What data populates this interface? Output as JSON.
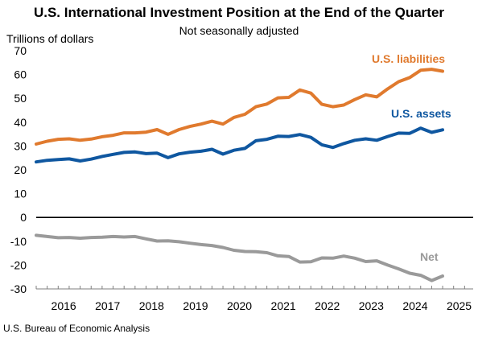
{
  "header": {
    "title": "U.S. International Investment Position at the End of the Quarter",
    "subtitle": "Not seasonally adjusted"
  },
  "footer": {
    "source": "U.S. Bureau of Economic Analysis"
  },
  "colors": {
    "liabilities": "#E07A2E",
    "assets": "#0F57A0",
    "net": "#9A9A9A",
    "zero_line": "#000000",
    "grid": "#D9D9D9"
  },
  "chart_data": {
    "type": "line",
    "title": "U.S. International Investment Position at the End of the Quarter",
    "subtitle": "Not seasonally adjusted",
    "ylabel": "Trillions of dollars",
    "xlabel": "",
    "ylim": [
      -30,
      70
    ],
    "yticks": [
      70,
      60,
      50,
      40,
      30,
      20,
      10,
      0,
      -10,
      -20,
      -30
    ],
    "year_labels": [
      "2016",
      "2017",
      "2018",
      "2019",
      "2020",
      "2021",
      "2022",
      "2023",
      "2024",
      "2025"
    ],
    "x": [
      "2015Q4",
      "2016Q1",
      "2016Q2",
      "2016Q3",
      "2016Q4",
      "2017Q1",
      "2017Q2",
      "2017Q3",
      "2017Q4",
      "2018Q1",
      "2018Q2",
      "2018Q3",
      "2018Q4",
      "2019Q1",
      "2019Q2",
      "2019Q3",
      "2019Q4",
      "2020Q1",
      "2020Q2",
      "2020Q3",
      "2020Q4",
      "2021Q1",
      "2021Q2",
      "2021Q3",
      "2021Q4",
      "2022Q1",
      "2022Q2",
      "2022Q3",
      "2022Q4",
      "2023Q1",
      "2023Q2",
      "2023Q3",
      "2023Q4",
      "2024Q1",
      "2024Q2",
      "2024Q3",
      "2024Q4",
      "2025Q1"
    ],
    "grid": false,
    "series": [
      {
        "name": "U.S. liabilities",
        "key": "liabilities",
        "values": [
          30.8,
          32.0,
          32.8,
          33.0,
          32.4,
          32.9,
          33.9,
          34.5,
          35.5,
          35.5,
          35.8,
          36.9,
          34.9,
          36.9,
          38.2,
          39.2,
          40.4,
          39.2,
          42.0,
          43.3,
          46.5,
          47.6,
          50.2,
          50.4,
          53.5,
          52.2,
          47.5,
          46.5,
          47.2,
          49.5,
          51.5,
          50.6,
          54.0,
          57.0,
          58.7,
          61.8,
          62.2,
          61.4
        ]
      },
      {
        "name": "U.S. assets",
        "key": "assets",
        "values": [
          23.3,
          24.0,
          24.3,
          24.6,
          23.7,
          24.5,
          25.6,
          26.5,
          27.3,
          27.5,
          26.8,
          27.0,
          25.1,
          26.7,
          27.4,
          27.8,
          28.6,
          26.6,
          28.2,
          29.0,
          32.2,
          32.8,
          34.1,
          34.0,
          34.8,
          33.6,
          30.5,
          29.4,
          31.0,
          32.4,
          33.0,
          32.4,
          34.0,
          35.4,
          35.3,
          37.5,
          35.7,
          36.8
        ]
      },
      {
        "name": "Net",
        "key": "net",
        "values": [
          -7.5,
          -8.0,
          -8.5,
          -8.4,
          -8.7,
          -8.4,
          -8.3,
          -8.0,
          -8.2,
          -8.0,
          -9.0,
          -9.9,
          -9.8,
          -10.2,
          -10.8,
          -11.4,
          -11.8,
          -12.6,
          -13.8,
          -14.3,
          -14.4,
          -14.8,
          -16.1,
          -16.4,
          -18.7,
          -18.6,
          -17.0,
          -17.1,
          -16.2,
          -17.1,
          -18.5,
          -18.2,
          -20.0,
          -21.6,
          -23.4,
          -24.3,
          -26.5,
          -24.6
        ]
      }
    ]
  }
}
